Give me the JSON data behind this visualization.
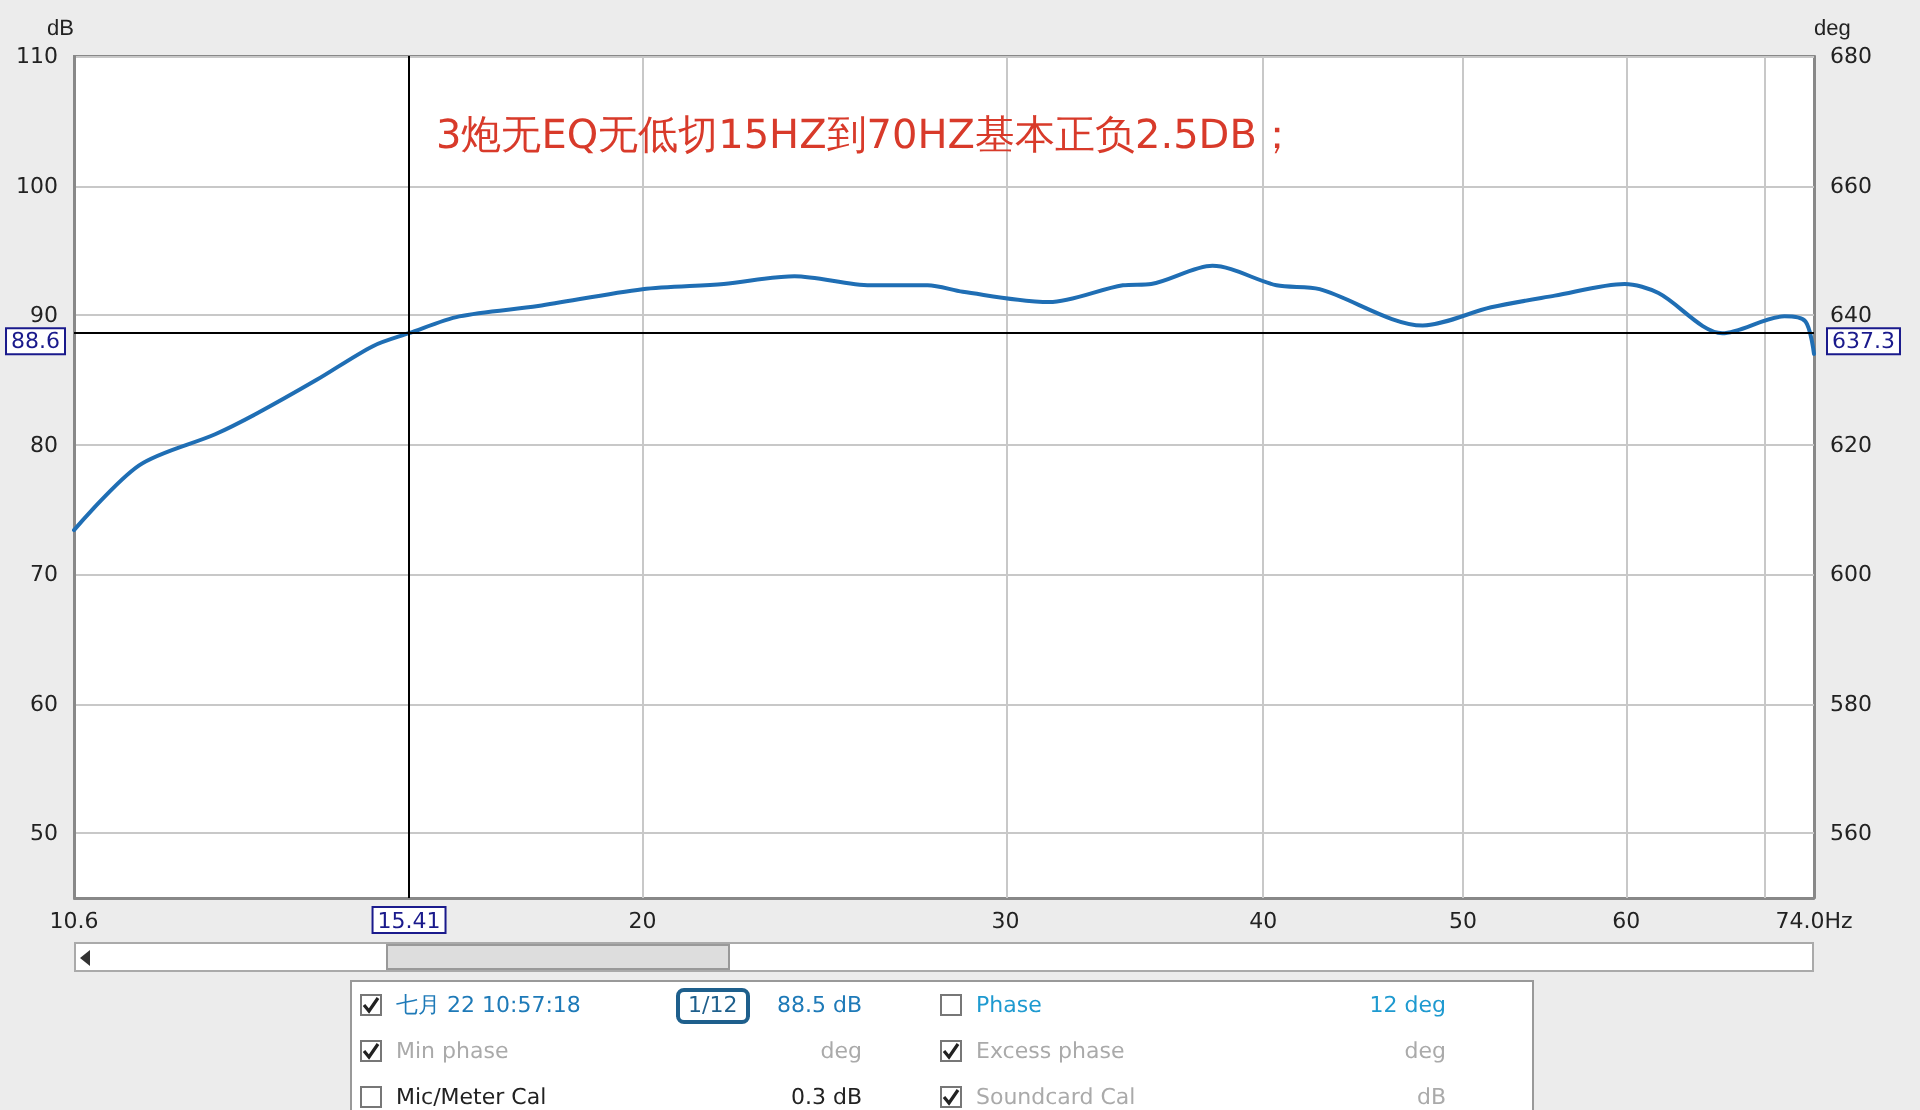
{
  "chart_data": {
    "type": "line",
    "title": "3炮无EQ无低切15HZ到70HZ基本正负2.5DB；",
    "ylabel": "dB",
    "y2label": "deg",
    "x": [
      10.6,
      11.4,
      12.41,
      13.0,
      13.9,
      14.8,
      15.41,
      16.3,
      17.8,
      20,
      21.9,
      23.7,
      25.8,
      27.5,
      28.6,
      31.5,
      34.2,
      35.3,
      37.8,
      40.6,
      42.6,
      47.8,
      51.6,
      55.4,
      59.9,
      62.2,
      66.8,
      71.6,
      73.3,
      74.0
    ],
    "series": [
      {
        "color": "#1f6eb4",
        "values": [
          73.4,
          78.4,
          80.8,
          82.4,
          85.0,
          87.6,
          88.6,
          89.9,
          90.7,
          92.0,
          92.4,
          93.0,
          92.3,
          92.3,
          91.8,
          91.0,
          92.3,
          92.4,
          93.8,
          92.3,
          92.0,
          89.2,
          90.6,
          91.5,
          92.4,
          91.7,
          88.6,
          89.9,
          89.5,
          87.0
        ]
      }
    ],
    "log": "x",
    "xlim": [
      10.6,
      74.0
    ],
    "xticks": [
      10.6,
      20,
      30,
      40,
      50,
      60,
      {
        "value": 70,
        "label": null
      },
      {
        "value": 74.0,
        "label": "74.0Hz"
      }
    ],
    "ylim": [
      45,
      110
    ],
    "yticks": [
      50,
      60,
      70,
      80,
      90,
      100,
      110
    ],
    "y2lim": [
      550,
      680
    ],
    "y2ticks": [
      560,
      580,
      600,
      620,
      640,
      660,
      680
    ],
    "grid": true,
    "marker": "none",
    "ref_lines": [
      {
        "axis": "x",
        "value": 15.41,
        "label": "15.41",
        "color": "#000000"
      },
      {
        "axis": "y",
        "value": 88.6,
        "label": "88.6",
        "color": "#000000"
      }
    ],
    "annotations": [
      "637.3",
      "七月 22 10:57:18",
      "1/12",
      "88.5 dB",
      "Phase",
      "12 deg",
      "Min phase",
      "deg",
      "Excess phase",
      "deg",
      "Mic/Meter Cal",
      "0.3 dB",
      "Soundcard Cal",
      "dB"
    ]
  }
}
